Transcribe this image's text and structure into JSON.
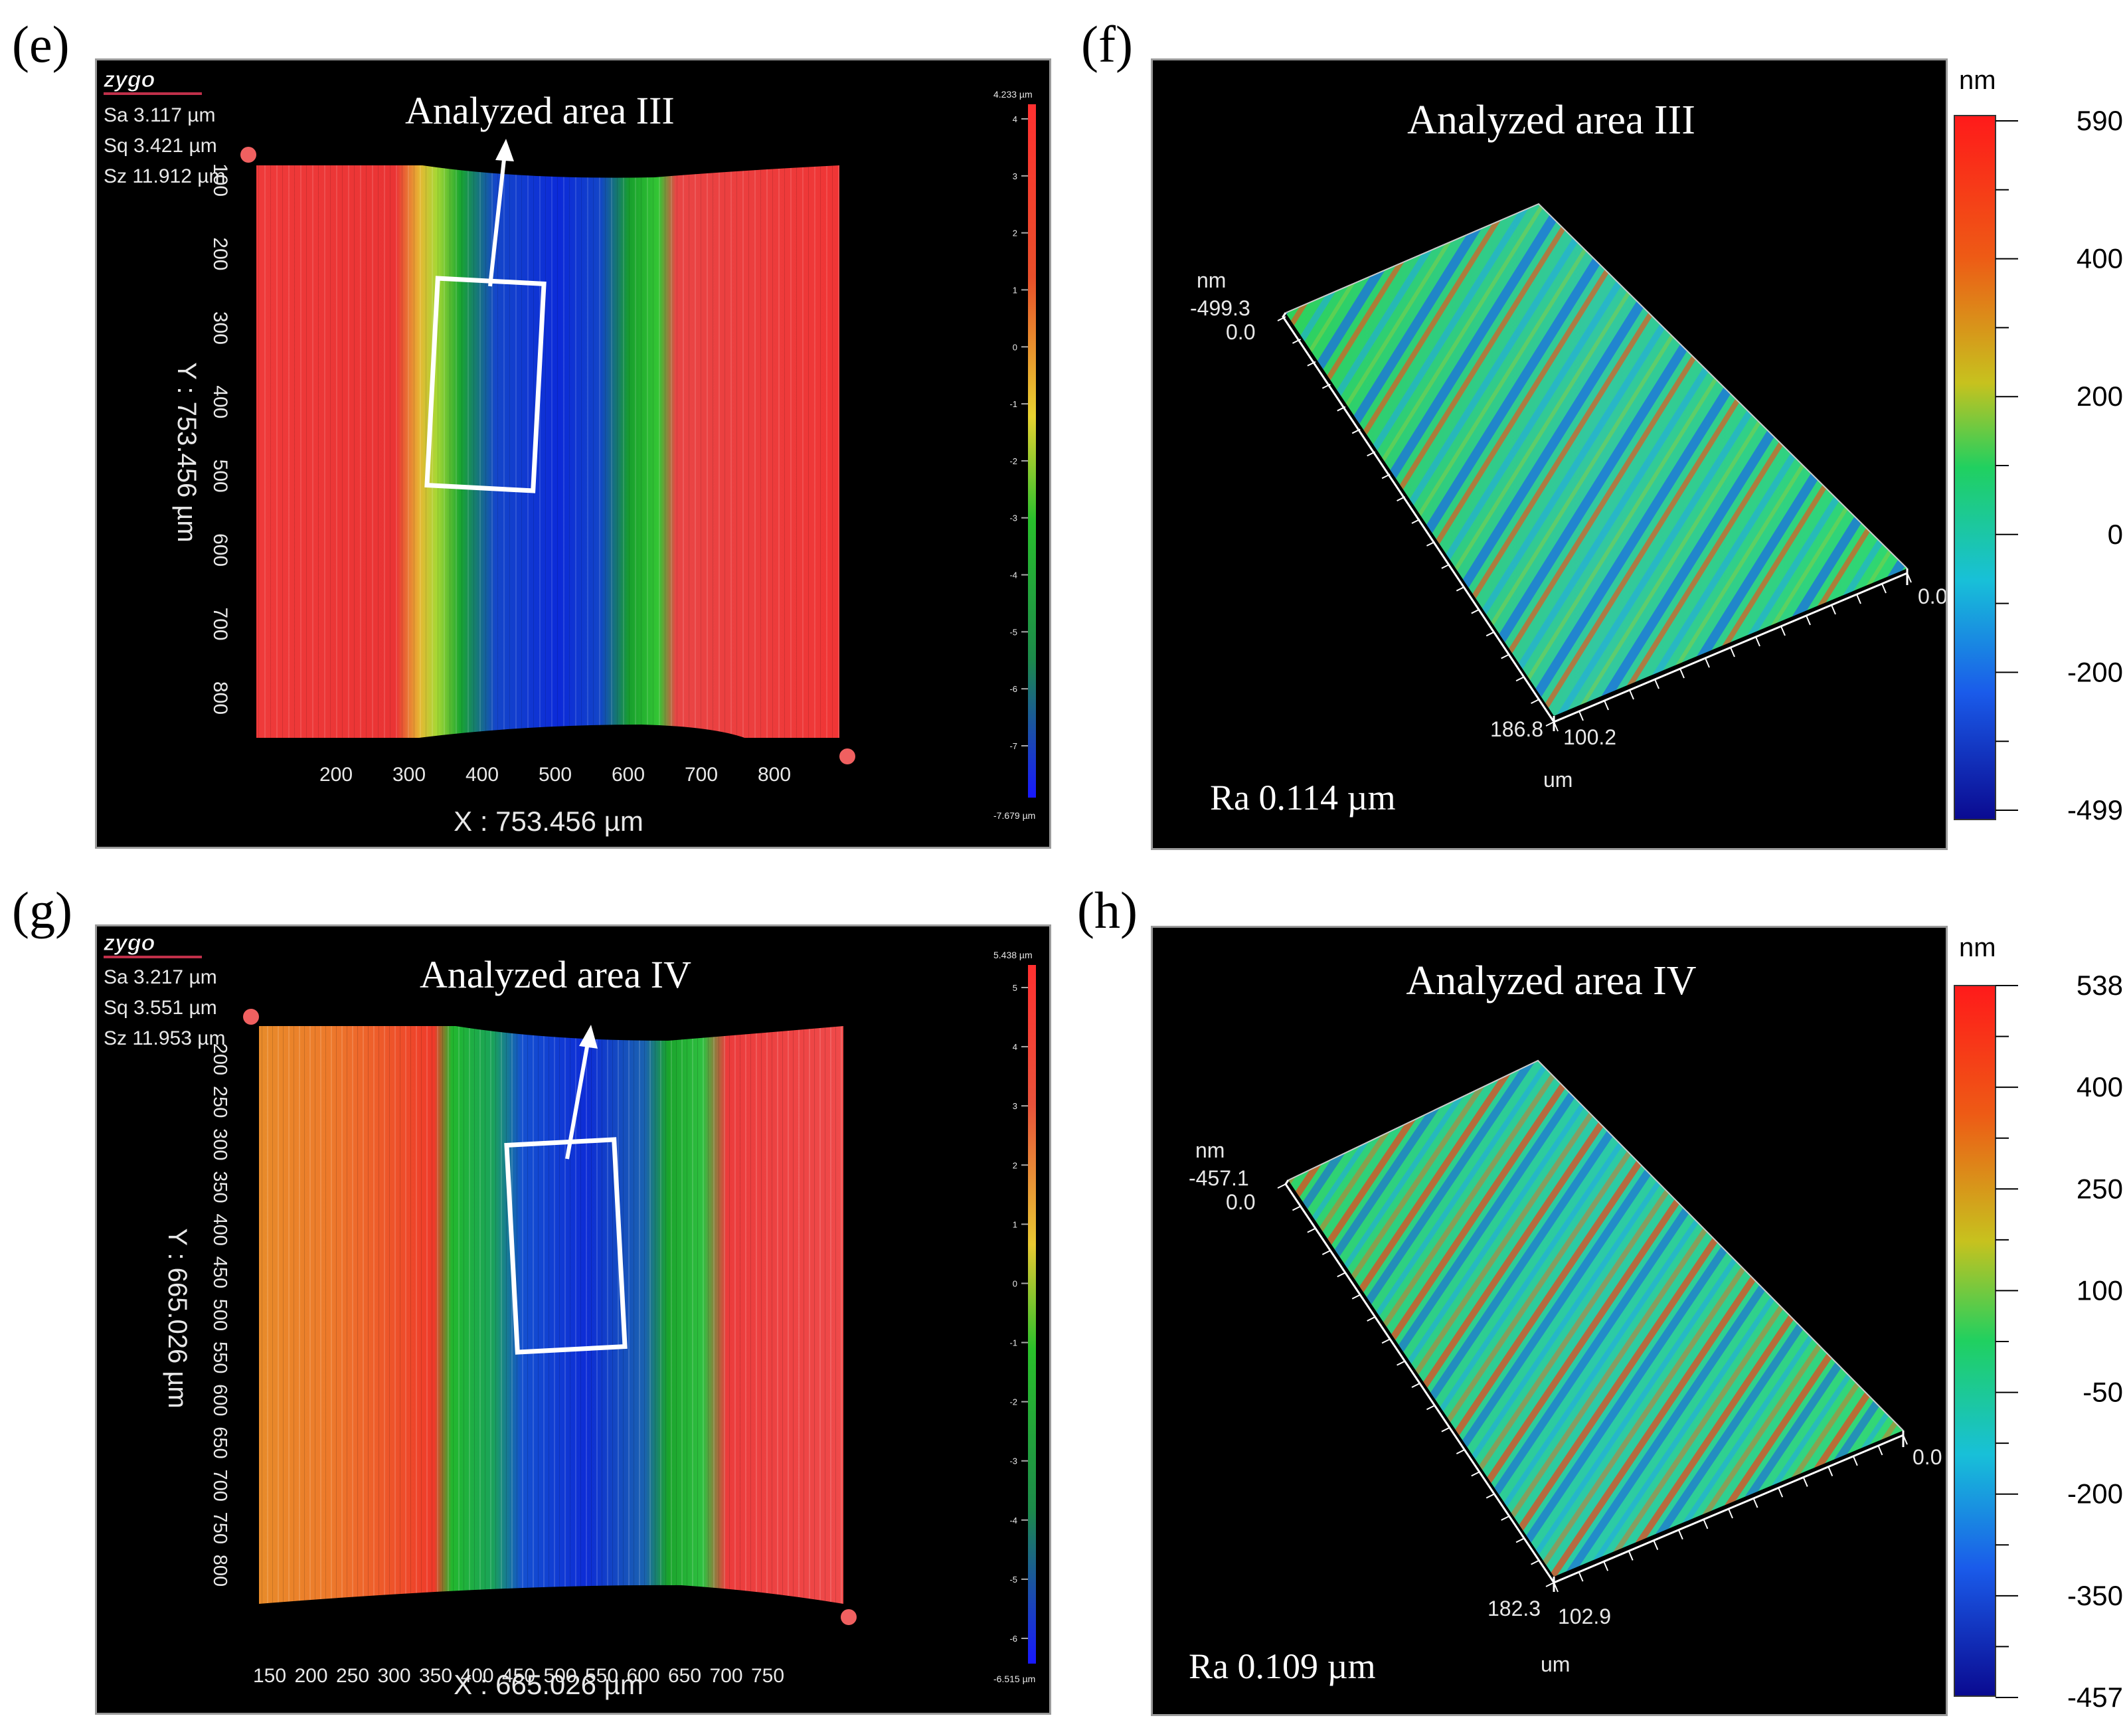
{
  "panels": {
    "e": {
      "label": "(e)",
      "logo": "zygo",
      "stats": [
        {
          "name": "Sa",
          "value": "3.117",
          "unit": "µm"
        },
        {
          "name": "Sq",
          "value": "3.421",
          "unit": "µm"
        },
        {
          "name": "Sz",
          "value": "11.912",
          "unit": "µm"
        }
      ],
      "annotation": "Analyzed area III",
      "y_axis_label": "Y : 753.456 µm",
      "x_axis_label": "X : 753.456 µm",
      "x_ticks": [
        "200",
        "300",
        "400",
        "500",
        "600",
        "700",
        "800"
      ],
      "y_ticks": [
        "100",
        "200",
        "300",
        "400",
        "500",
        "600",
        "700",
        "800"
      ],
      "scale_max": "4.233 µm",
      "scale_min": "-7.679 µm",
      "scale_ticks": [
        "4",
        "3",
        "2",
        "1",
        "0",
        "-1",
        "-2",
        "-3",
        "-4",
        "-5",
        "-6",
        "-7"
      ]
    },
    "f": {
      "label": "(f)",
      "title": "Analyzed area III",
      "z_unit": "nm",
      "z_top": "-499.3",
      "z_zero": "0.0",
      "x_end": "0.0",
      "y_a": "186.8",
      "y_b": "100.2",
      "lateral_unit": "um",
      "ra_text": "Ra  0.114 µm",
      "colorbar_unit": "nm",
      "colorbar_ticks": [
        "590",
        "400",
        "200",
        "0",
        "-200",
        "-499"
      ]
    },
    "g": {
      "label": "(g)",
      "logo": "zygo",
      "stats": [
        {
          "name": "Sa",
          "value": "3.217",
          "unit": "µm"
        },
        {
          "name": "Sq",
          "value": "3.551",
          "unit": "µm"
        },
        {
          "name": "Sz",
          "value": "11.953",
          "unit": "µm"
        }
      ],
      "annotation": "Analyzed area IV",
      "y_axis_label": "Y : 665.026 µm",
      "x_axis_label": "X : 665.026 µm",
      "x_ticks": [
        "150",
        "200",
        "250",
        "300",
        "350",
        "400",
        "450",
        "500",
        "550",
        "600",
        "650",
        "700",
        "750"
      ],
      "y_ticks": [
        "200",
        "250",
        "300",
        "350",
        "400",
        "450",
        "500",
        "550",
        "600",
        "650",
        "700",
        "750",
        "800"
      ],
      "scale_max": "5.438 µm",
      "scale_min": "-6.515 µm",
      "scale_ticks": [
        "5",
        "4",
        "3",
        "2",
        "1",
        "0",
        "-1",
        "-2",
        "-3",
        "-4",
        "-5",
        "-6"
      ]
    },
    "h": {
      "label": "(h)",
      "title": "Analyzed area IV",
      "z_unit": "nm",
      "z_top": "-457.1",
      "z_zero": "0.0",
      "x_end": "0.0",
      "y_a": "182.3",
      "y_b": "102.9",
      "lateral_unit": "um",
      "ra_text": "Ra  0.109 µm",
      "colorbar_unit": "nm",
      "colorbar_ticks": [
        "538",
        "400",
        "250",
        "100",
        "-50",
        "-200",
        "-350",
        "-457"
      ]
    }
  }
}
